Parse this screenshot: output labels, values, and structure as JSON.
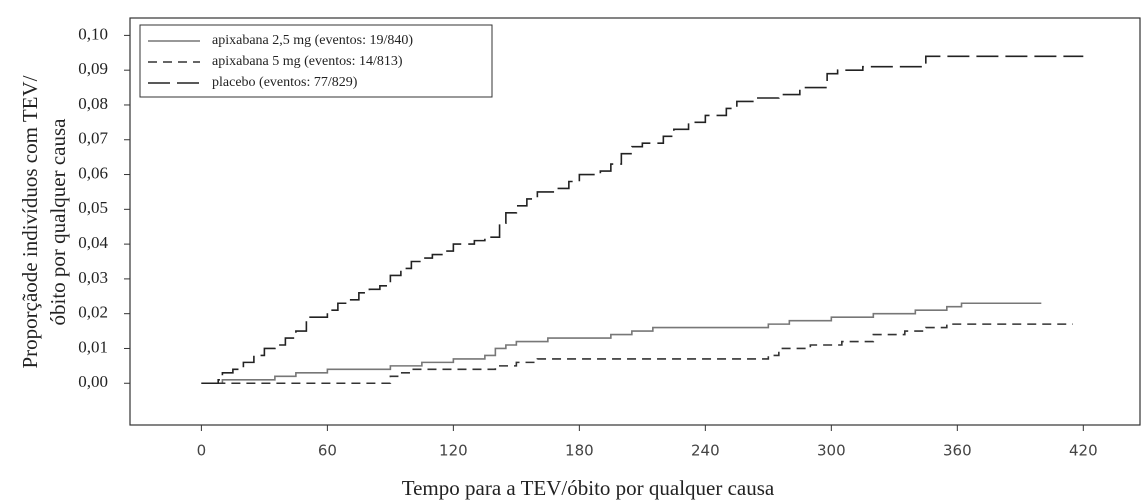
{
  "chart_data": {
    "type": "line",
    "step": true,
    "ylabel": [
      "Proporçãode indivíduos com TEV/",
      "óbito por qualquer causa"
    ],
    "xlabel": "Tempo para a TEV/óbito por qualquer causa",
    "xlim": [
      -34,
      447
    ],
    "ylim": [
      -0.012,
      0.105
    ],
    "xticks": [
      0,
      60,
      120,
      180,
      240,
      300,
      360,
      420
    ],
    "yticks": [
      {
        "value": 0.0,
        "label": "0,00"
      },
      {
        "value": 0.01,
        "label": "0,01"
      },
      {
        "value": 0.02,
        "label": "0,02"
      },
      {
        "value": 0.03,
        "label": "0,03"
      },
      {
        "value": 0.04,
        "label": "0,04"
      },
      {
        "value": 0.05,
        "label": "0,05"
      },
      {
        "value": 0.06,
        "label": "0,06"
      },
      {
        "value": 0.07,
        "label": "0,07"
      },
      {
        "value": 0.08,
        "label": "0,08"
      },
      {
        "value": 0.09,
        "label": "0,09"
      },
      {
        "value": 0.1,
        "label": "0,10"
      }
    ],
    "legend": "upper left",
    "series": [
      {
        "name": "apixabana 2,5  mg (eventos: 19/840)",
        "color": "#777777",
        "dash": "none",
        "x": [
          0,
          10,
          35,
          45,
          60,
          90,
          105,
          120,
          135,
          140,
          145,
          150,
          165,
          195,
          205,
          215,
          270,
          280,
          300,
          320,
          340,
          355,
          362,
          400
        ],
        "values": [
          0,
          0.001,
          0.002,
          0.003,
          0.004,
          0.005,
          0.006,
          0.007,
          0.008,
          0.01,
          0.011,
          0.012,
          0.013,
          0.014,
          0.015,
          0.016,
          0.017,
          0.018,
          0.019,
          0.02,
          0.021,
          0.022,
          0.023,
          0.023
        ]
      },
      {
        "name": "apixabana 5  mg (eventos:  14/813)",
        "color": "#333333",
        "dash": "9 6",
        "x": [
          0,
          90,
          95,
          100,
          140,
          150,
          160,
          270,
          275,
          290,
          305,
          320,
          335,
          345,
          355,
          415
        ],
        "values": [
          0,
          0.002,
          0.003,
          0.004,
          0.005,
          0.006,
          0.007,
          0.008,
          0.01,
          0.011,
          0.012,
          0.014,
          0.015,
          0.016,
          0.017,
          0.017
        ]
      },
      {
        "name": "placebo  (eventos: 77/829)",
        "color": "#222222",
        "dash": "22 7",
        "x": [
          0,
          8,
          10,
          15,
          20,
          25,
          30,
          35,
          40,
          45,
          50,
          60,
          65,
          70,
          75,
          80,
          85,
          90,
          95,
          100,
          105,
          110,
          115,
          120,
          130,
          135,
          142,
          145,
          150,
          155,
          160,
          170,
          175,
          180,
          190,
          195,
          200,
          205,
          210,
          220,
          225,
          232,
          240,
          250,
          255,
          265,
          275,
          285,
          298,
          303,
          315,
          345,
          420
        ],
        "values": [
          0,
          0.001,
          0.003,
          0.004,
          0.006,
          0.008,
          0.01,
          0.011,
          0.013,
          0.015,
          0.019,
          0.021,
          0.023,
          0.024,
          0.026,
          0.027,
          0.028,
          0.031,
          0.033,
          0.035,
          0.036,
          0.037,
          0.038,
          0.04,
          0.041,
          0.042,
          0.046,
          0.049,
          0.051,
          0.053,
          0.055,
          0.056,
          0.058,
          0.06,
          0.061,
          0.063,
          0.066,
          0.068,
          0.069,
          0.071,
          0.073,
          0.075,
          0.077,
          0.079,
          0.081,
          0.082,
          0.083,
          0.085,
          0.089,
          0.09,
          0.091,
          0.094,
          0.094
        ]
      }
    ]
  }
}
